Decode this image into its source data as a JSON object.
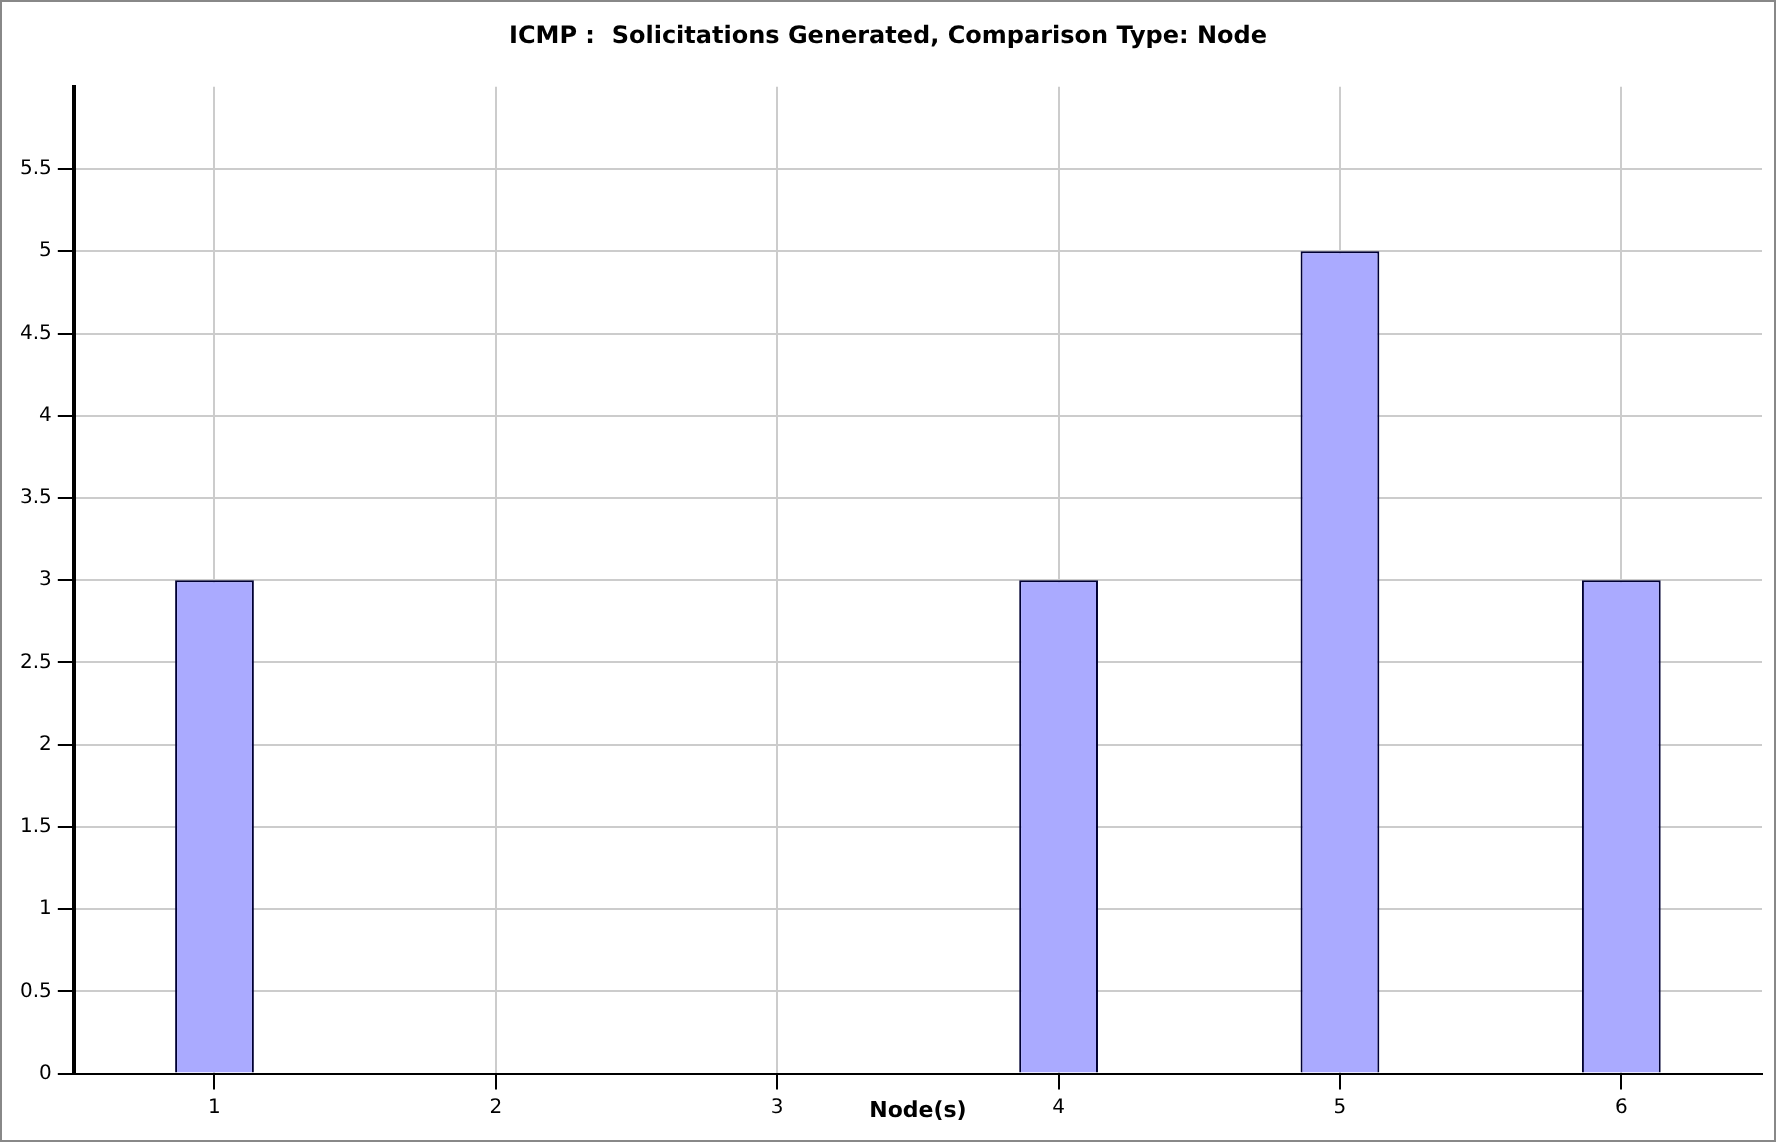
{
  "chart_data": {
    "type": "bar",
    "title": "ICMP :  Solicitations Generated, Comparison Type: Node",
    "xlabel": "Node(s)",
    "categories": [
      "1",
      "2",
      "3",
      "4",
      "5",
      "6"
    ],
    "values": [
      3,
      0,
      0,
      3,
      5,
      3
    ],
    "color": "#aaaaff",
    "ylim": [
      0,
      6
    ],
    "yticks": [
      0,
      0.5,
      1,
      1.5,
      2,
      2.5,
      3,
      3.5,
      4,
      4.5,
      5,
      5.5
    ],
    "grid": true
  }
}
